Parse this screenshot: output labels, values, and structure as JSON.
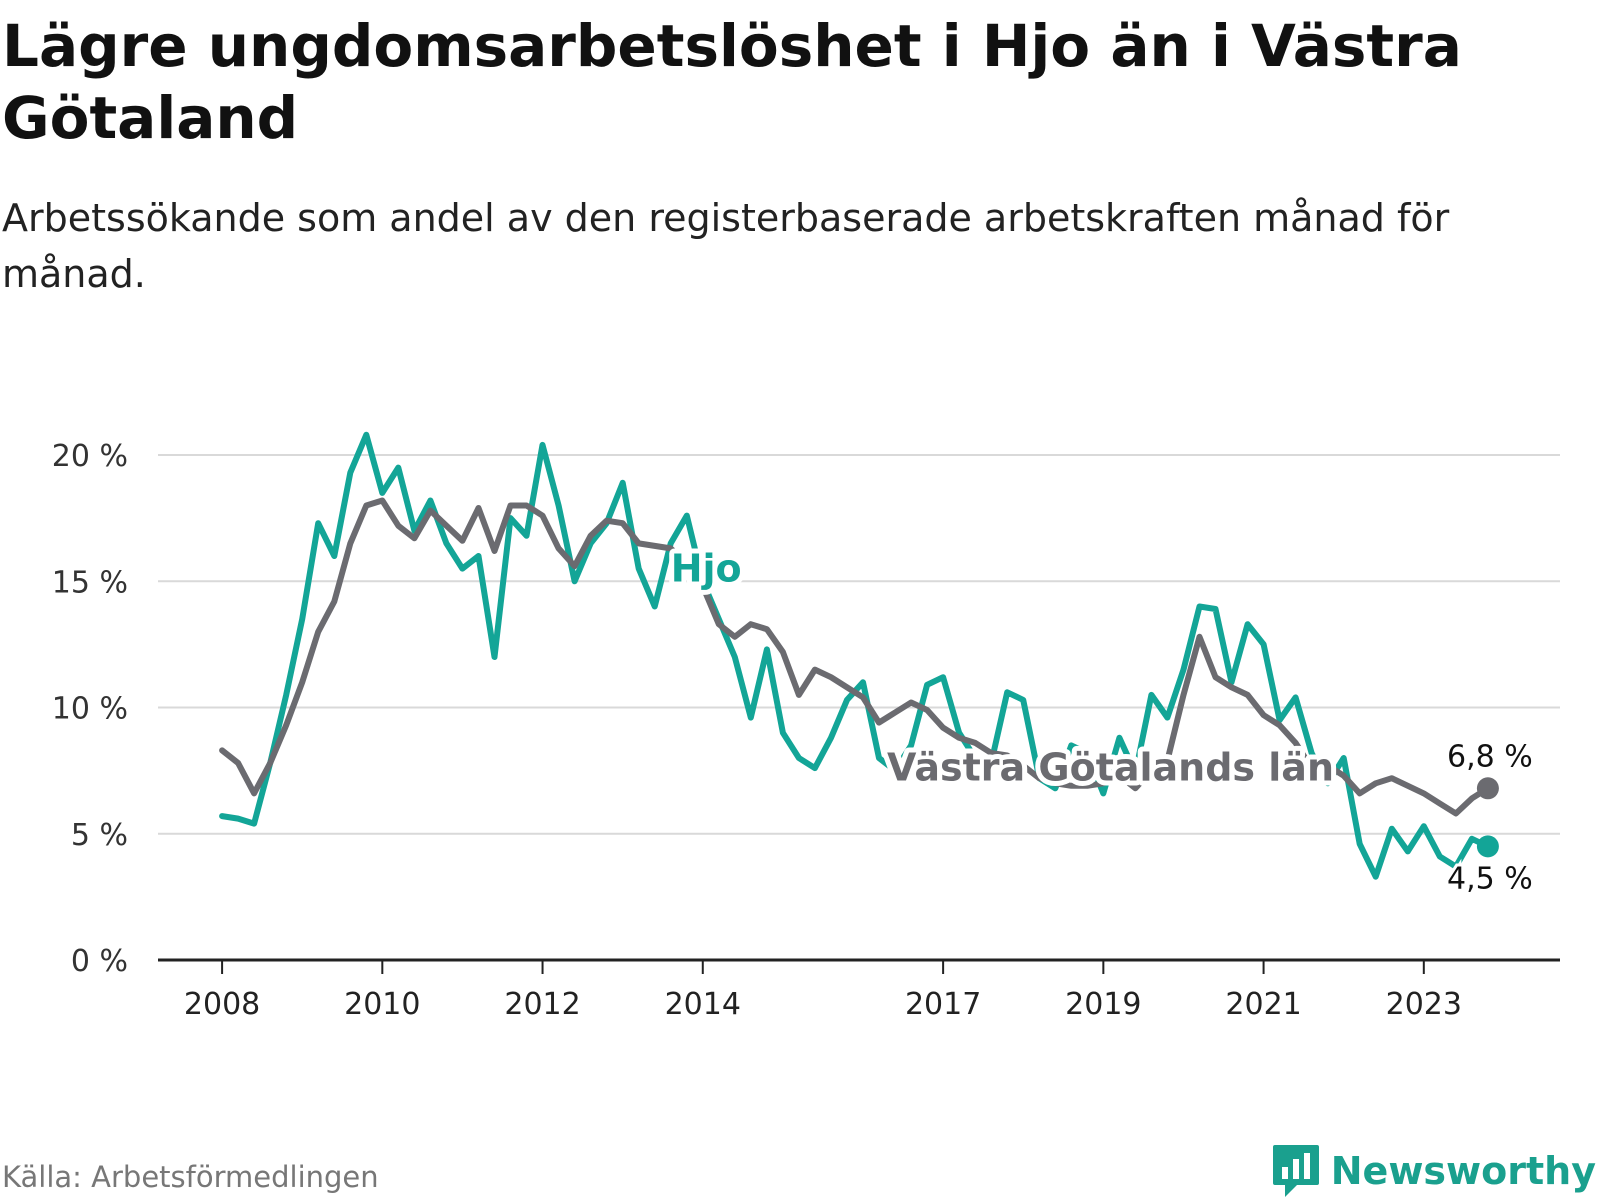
{
  "title": "Lägre ungdomsarbetslöshet i Hjo än i Västra Götaland",
  "subtitle": "Arbetssökande som andel av den registerbaserade arbetskraften månad för månad.",
  "source": "Källa: Arbetsförmedlingen",
  "brand": "Newsworthy",
  "colors": {
    "hjo": "#13a597",
    "vg": "#6b6b70",
    "grid": "#d9d9d9",
    "axis": "#222222",
    "brand": "#1aa08e"
  },
  "chart_data": {
    "type": "line",
    "title": "Lägre ungdomsarbetslöshet i Hjo än i Västra Götaland",
    "xlabel": "",
    "ylabel": "",
    "ylim": [
      0,
      20
    ],
    "xlim": [
      2007.2,
      2024.7
    ],
    "yticks": [
      0,
      5,
      10,
      15,
      20
    ],
    "ytick_labels": [
      "0 %",
      "5 %",
      "10 %",
      "15 %",
      "20 %"
    ],
    "xticks": [
      2008,
      2010,
      2012,
      2014,
      2017,
      2019,
      2021,
      2023
    ],
    "xtick_labels": [
      "2008",
      "2010",
      "2012",
      "2014",
      "2017",
      "2019",
      "2021",
      "2023"
    ],
    "grid": true,
    "series": [
      {
        "name": "Hjo",
        "color_key": "hjo",
        "label_pos": [
          2013.6,
          15.0
        ],
        "end_label": "4,5 %",
        "x": [
          2008.0,
          2008.2,
          2008.4,
          2008.6,
          2008.8,
          2009.0,
          2009.2,
          2009.4,
          2009.6,
          2009.8,
          2010.0,
          2010.2,
          2010.4,
          2010.6,
          2010.8,
          2011.0,
          2011.2,
          2011.4,
          2011.6,
          2011.8,
          2012.0,
          2012.2,
          2012.4,
          2012.6,
          2012.8,
          2013.0,
          2013.2,
          2013.4,
          2013.6,
          2013.8,
          2014.0,
          2014.2,
          2014.4,
          2014.6,
          2014.8,
          2015.0,
          2015.2,
          2015.4,
          2015.6,
          2015.8,
          2016.0,
          2016.2,
          2016.4,
          2016.6,
          2016.8,
          2017.0,
          2017.2,
          2017.4,
          2017.6,
          2017.8,
          2018.0,
          2018.2,
          2018.4,
          2018.6,
          2018.8,
          2019.0,
          2019.2,
          2019.4,
          2019.6,
          2019.8,
          2020.0,
          2020.2,
          2020.4,
          2020.6,
          2020.8,
          2021.0,
          2021.2,
          2021.4,
          2021.6,
          2021.8,
          2022.0,
          2022.2,
          2022.4,
          2022.6,
          2022.8,
          2023.0,
          2023.2,
          2023.4,
          2023.6,
          2023.8
        ],
        "values": [
          5.7,
          5.6,
          5.4,
          7.8,
          10.5,
          13.5,
          17.3,
          16.0,
          19.3,
          20.8,
          18.5,
          19.5,
          17.0,
          18.2,
          16.5,
          15.5,
          16.0,
          12.0,
          17.5,
          16.8,
          20.4,
          18.0,
          15.0,
          16.5,
          17.3,
          18.9,
          15.5,
          14.0,
          16.5,
          17.6,
          15.0,
          13.5,
          12.0,
          9.6,
          12.3,
          9.0,
          8.0,
          7.6,
          8.8,
          10.3,
          11.0,
          8.0,
          7.5,
          8.5,
          10.9,
          11.2,
          9.0,
          8.0,
          7.8,
          10.6,
          10.3,
          7.2,
          6.8,
          8.5,
          8.2,
          6.6,
          8.8,
          7.4,
          10.5,
          9.6,
          11.5,
          14.0,
          13.9,
          11.0,
          13.3,
          12.5,
          9.5,
          10.4,
          8.2,
          7.0,
          8.0,
          4.6,
          3.3,
          5.2,
          4.3,
          5.3,
          4.1,
          3.7,
          4.8,
          4.5
        ]
      },
      {
        "name": "Västra Götalands län",
        "color_key": "vg",
        "label_pos": [
          2016.3,
          7.1
        ],
        "end_label": "6,8 %",
        "x": [
          2008.0,
          2008.2,
          2008.4,
          2008.6,
          2008.8,
          2009.0,
          2009.2,
          2009.4,
          2009.6,
          2009.8,
          2010.0,
          2010.2,
          2010.4,
          2010.6,
          2010.8,
          2011.0,
          2011.2,
          2011.4,
          2011.6,
          2011.8,
          2012.0,
          2012.2,
          2012.4,
          2012.6,
          2012.8,
          2013.0,
          2013.2,
          2013.4,
          2013.6,
          2013.8,
          2014.0,
          2014.2,
          2014.4,
          2014.6,
          2014.8,
          2015.0,
          2015.2,
          2015.4,
          2015.6,
          2015.8,
          2016.0,
          2016.2,
          2016.4,
          2016.6,
          2016.8,
          2017.0,
          2017.2,
          2017.4,
          2017.6,
          2017.8,
          2018.0,
          2018.2,
          2018.4,
          2018.6,
          2018.8,
          2019.0,
          2019.2,
          2019.4,
          2019.6,
          2019.8,
          2020.0,
          2020.2,
          2020.4,
          2020.6,
          2020.8,
          2021.0,
          2021.2,
          2021.4,
          2021.6,
          2021.8,
          2022.0,
          2022.2,
          2022.4,
          2022.6,
          2022.8,
          2023.0,
          2023.2,
          2023.4,
          2023.6,
          2023.8
        ],
        "values": [
          8.3,
          7.8,
          6.6,
          7.8,
          9.3,
          11.0,
          13.0,
          14.2,
          16.5,
          18.0,
          18.2,
          17.2,
          16.7,
          17.8,
          17.2,
          16.6,
          17.9,
          16.2,
          18.0,
          18.0,
          17.6,
          16.3,
          15.6,
          16.8,
          17.4,
          17.3,
          16.5,
          16.4,
          16.3,
          15.7,
          14.8,
          13.3,
          12.8,
          13.3,
          13.1,
          12.2,
          10.5,
          11.5,
          11.2,
          10.8,
          10.4,
          9.4,
          9.8,
          10.2,
          9.9,
          9.2,
          8.8,
          8.6,
          8.2,
          8.1,
          7.7,
          7.2,
          7.0,
          6.9,
          6.9,
          7.0,
          7.3,
          6.8,
          7.5,
          7.9,
          10.5,
          12.8,
          11.2,
          10.8,
          10.5,
          9.7,
          9.3,
          8.6,
          7.6,
          7.7,
          7.3,
          6.6,
          7.0,
          7.2,
          6.9,
          6.6,
          6.2,
          5.8,
          6.4,
          6.8
        ]
      }
    ]
  }
}
